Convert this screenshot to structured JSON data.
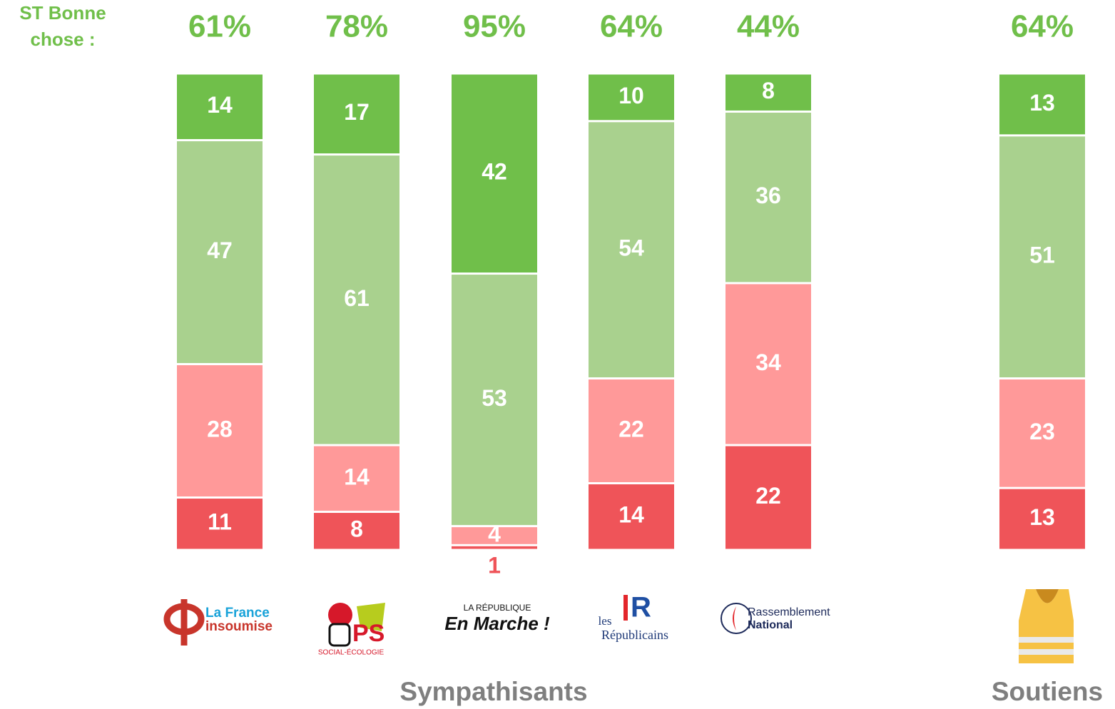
{
  "chart_data": {
    "type": "stacked_bar",
    "heading": [
      "ST Bonne",
      "chose :"
    ],
    "ylim": [
      0,
      100
    ],
    "totals": {
      "values": [
        61,
        78,
        95,
        64,
        44,
        64
      ],
      "value_labels": [
        "61%",
        "78%",
        "95%",
        "64%",
        "44%",
        "64%"
      ]
    },
    "series": [
      {
        "color": "#ef5459",
        "values": [
          11,
          8,
          1,
          14,
          22,
          13
        ]
      },
      {
        "color": "#ff9999",
        "values": [
          28,
          14,
          4,
          22,
          34,
          23
        ]
      },
      {
        "color": "#a9d18e",
        "values": [
          47,
          61,
          53,
          54,
          36,
          51
        ]
      },
      {
        "color": "#70bf4a",
        "values": [
          14,
          17,
          42,
          10,
          8,
          13
        ]
      }
    ],
    "logos": {
      "lfi": [
        "La France",
        "insoumise"
      ],
      "ps": [
        "PS",
        "SOCIAL-ÉCOLOGIE"
      ],
      "lrem": [
        "LA RÉPUBLIQUE",
        "En Marche !"
      ],
      "lr": [
        "les",
        "Républicains"
      ],
      "rn": [
        "Rassemblement",
        "National"
      ]
    },
    "groups": [
      "Sympathisants",
      "Soutiens"
    ]
  }
}
